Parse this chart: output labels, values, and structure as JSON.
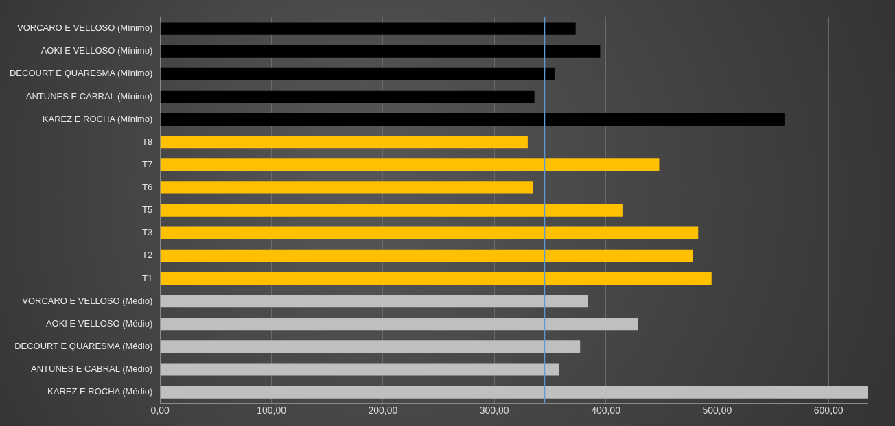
{
  "chart_data": {
    "type": "bar",
    "orientation": "horizontal",
    "categories": [
      "VORCARO E VELLOSO (Mínimo)",
      "AOKI E VELLOSO (Mínimo)",
      "DECOURT E QUARESMA (Mínimo)",
      "ANTUNES E CABRAL (Mínimo)",
      "KAREZ E ROCHA (Mínimo)",
      "T8",
      "T7",
      "T6",
      "T5",
      "T3",
      "T2",
      "T1",
      "VORCARO E VELLOSO (Médio)",
      "AOKI E VELLOSO (Médio)",
      "DECOURT E QUARESMA (Médio)",
      "ANTUNES E CABRAL (Médio)",
      "KAREZ E ROCHA (Médio)"
    ],
    "values": [
      373,
      395,
      354,
      336,
      561,
      330,
      448,
      335,
      415,
      483,
      478,
      495,
      384,
      429,
      377,
      358,
      635
    ],
    "colors": [
      "#000000",
      "#000000",
      "#000000",
      "#000000",
      "#000000",
      "#ffc000",
      "#ffc000",
      "#ffc000",
      "#ffc000",
      "#ffc000",
      "#ffc000",
      "#ffc000",
      "#bfbfbf",
      "#bfbfbf",
      "#bfbfbf",
      "#bfbfbf",
      "#bfbfbf"
    ],
    "xlim": [
      0,
      635
    ],
    "xticks": [
      {
        "value": 0,
        "label": "0,00"
      },
      {
        "value": 100,
        "label": "100,00"
      },
      {
        "value": 200,
        "label": "200,00"
      },
      {
        "value": 300,
        "label": "300,00"
      },
      {
        "value": 400,
        "label": "400,00"
      },
      {
        "value": 500,
        "label": "500,00"
      },
      {
        "value": 600,
        "label": "600,00"
      }
    ],
    "ref_lines": [
      {
        "axis": "x",
        "value": 345,
        "color": "#5b9bd5"
      }
    ],
    "grid": "x",
    "legend": false
  }
}
